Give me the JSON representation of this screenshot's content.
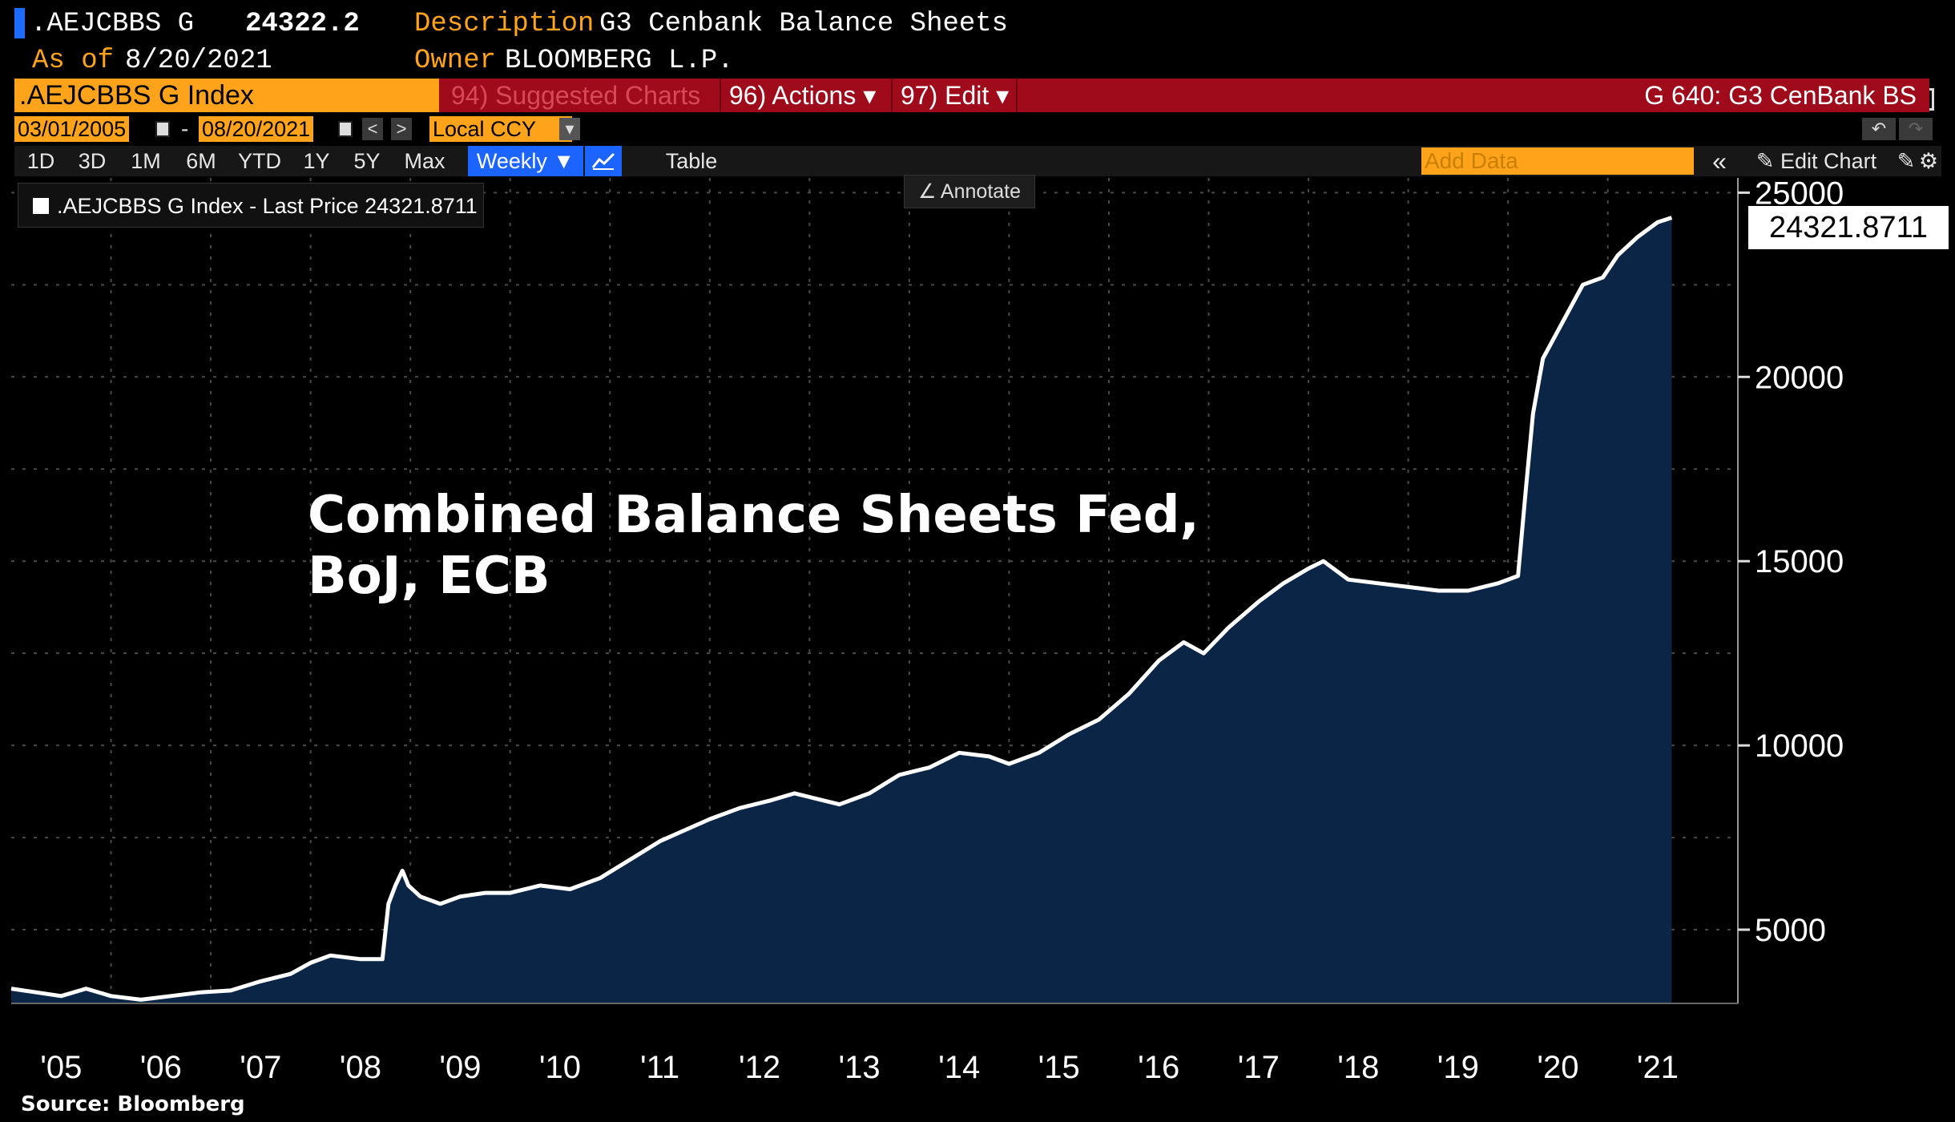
{
  "header": {
    "ticker": ".AEJCBBS G",
    "price": "24322.2",
    "description_label": "Description",
    "description_value": "G3 Cenbank Balance Sheets",
    "as_of_label": "As of",
    "as_of_value": "8/20/2021",
    "owner_label": "Owner",
    "owner_value": "BLOOMBERG L.P."
  },
  "toolbar": {
    "index_name": ".AEJCBBS G Index",
    "suggested": "94) Suggested Charts",
    "actions": "96) Actions ▾",
    "edit": "97) Edit ▾",
    "page_code": "G 640: G3 CenBank BS"
  },
  "range": {
    "start": "03/01/2005",
    "end": "08/20/2021",
    "dash": "-",
    "currency": "Local CCY",
    "prev": "<",
    "next": ">",
    "dropdown": "▾",
    "undo": "↶",
    "redo": "↷"
  },
  "periods": {
    "items": [
      "1D",
      "3D",
      "1M",
      "6M",
      "YTD",
      "1Y",
      "5Y",
      "Max"
    ],
    "frequency": "Weekly ▼",
    "table": "Table",
    "add_data_placeholder": "Add Data",
    "collapse": "«",
    "edit_chart": "✎ Edit Chart",
    "gear": "⚙"
  },
  "legend": {
    "label": ".AEJCBBS G Index - Last Price 24321.8711"
  },
  "annotate": "∠ Annotate",
  "last_value_tag": "24321.8711",
  "source": "Source: Bloomberg",
  "colors": {
    "accent_orange": "#ffa31a",
    "toolbar_red": "#a00b1c",
    "area_fill": "#0b2547",
    "line": "#ffffff"
  },
  "chart_data": {
    "type": "area",
    "title": "Combined Balance Sheets Fed,\nBoJ, ECB",
    "ylim": [
      3000,
      25400
    ],
    "yticks": [
      5000,
      10000,
      15000,
      20000,
      25000
    ],
    "ytick_labels": [
      "5000",
      "10000",
      "15000",
      "20000",
      "25000"
    ],
    "xtick_labels": [
      "'05",
      "'06",
      "'07",
      "'08",
      "'09",
      "'10",
      "'11",
      "'12",
      "'13",
      "'14",
      "'15",
      "'16",
      "'17",
      "'18",
      "'19",
      "'20",
      "'21"
    ],
    "x_range": [
      2005.0,
      2021.95
    ],
    "grid": true,
    "legend_position": "top-left",
    "series": [
      {
        "name": ".AEJCBBS G Index - Last Price",
        "x": [
          2005.0,
          2005.25,
          2005.5,
          2005.75,
          2006.0,
          2006.3,
          2006.6,
          2006.9,
          2007.2,
          2007.5,
          2007.8,
          2008.0,
          2008.2,
          2008.5,
          2008.72,
          2008.78,
          2008.85,
          2008.92,
          2008.98,
          2009.1,
          2009.3,
          2009.5,
          2009.75,
          2010.0,
          2010.3,
          2010.6,
          2010.9,
          2011.2,
          2011.5,
          2011.75,
          2012.0,
          2012.3,
          2012.6,
          2012.85,
          2013.0,
          2013.3,
          2013.6,
          2013.9,
          2014.2,
          2014.5,
          2014.8,
          2015.0,
          2015.3,
          2015.6,
          2015.9,
          2016.2,
          2016.5,
          2016.75,
          2016.95,
          2017.2,
          2017.5,
          2017.75,
          2018.0,
          2018.15,
          2018.4,
          2018.7,
          2019.0,
          2019.3,
          2019.6,
          2019.9,
          2020.1,
          2020.18,
          2020.25,
          2020.35,
          2020.55,
          2020.75,
          2020.95,
          2021.1,
          2021.3,
          2021.5,
          2021.64
        ],
        "values": [
          3400,
          3300,
          3200,
          3400,
          3200,
          3100,
          3200,
          3300,
          3350,
          3600,
          3800,
          4100,
          4300,
          4200,
          4200,
          5700,
          6200,
          6600,
          6200,
          5900,
          5700,
          5900,
          6000,
          6000,
          6200,
          6100,
          6400,
          6900,
          7400,
          7700,
          8000,
          8300,
          8500,
          8700,
          8600,
          8400,
          8700,
          9200,
          9400,
          9800,
          9700,
          9500,
          9800,
          10300,
          10700,
          11400,
          12300,
          12800,
          12500,
          13200,
          13900,
          14400,
          14800,
          15000,
          14500,
          14400,
          14300,
          14200,
          14200,
          14400,
          14600,
          17000,
          19000,
          20500,
          21500,
          22500,
          22700,
          23300,
          23800,
          24200,
          24321.8711
        ]
      }
    ]
  }
}
